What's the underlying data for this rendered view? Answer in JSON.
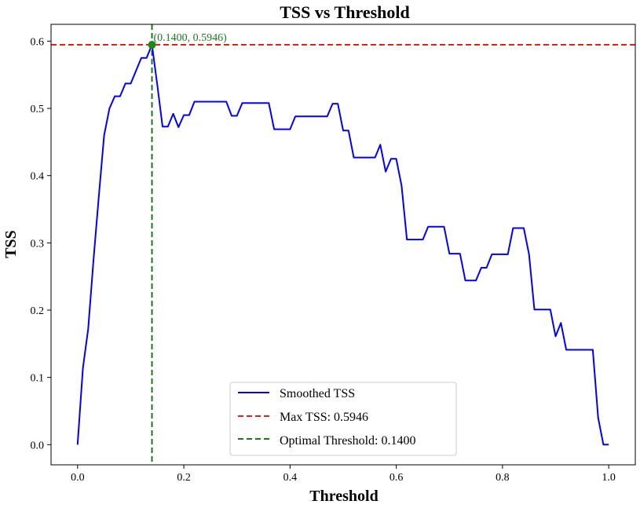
{
  "chart_data": {
    "type": "line",
    "title": "TSS vs Threshold",
    "xlabel": "Threshold",
    "ylabel": "TSS",
    "xlim": [
      -0.05,
      1.05
    ],
    "ylim": [
      -0.03,
      0.625
    ],
    "xticks": [
      0.0,
      0.2,
      0.4,
      0.6,
      0.8,
      1.0
    ],
    "xtick_labels": [
      "0.0",
      "0.2",
      "0.4",
      "0.6",
      "0.8",
      "1.0"
    ],
    "yticks": [
      0.0,
      0.1,
      0.2,
      0.3,
      0.4,
      0.5,
      0.6
    ],
    "ytick_labels": [
      "0.0",
      "0.1",
      "0.2",
      "0.3",
      "0.4",
      "0.5",
      "0.6"
    ],
    "grid": false,
    "legend_position": "bottom-center",
    "series": [
      {
        "name": "Smoothed TSS",
        "color": "#0000ff",
        "style": "solid",
        "x": [
          0.0,
          0.01,
          0.02,
          0.03,
          0.04,
          0.05,
          0.06,
          0.07,
          0.08,
          0.09,
          0.1,
          0.11,
          0.12,
          0.13,
          0.14,
          0.15,
          0.16,
          0.17,
          0.18,
          0.19,
          0.2,
          0.21,
          0.22,
          0.23,
          0.24,
          0.25,
          0.26,
          0.27,
          0.28,
          0.29,
          0.3,
          0.31,
          0.32,
          0.33,
          0.34,
          0.35,
          0.36,
          0.37,
          0.38,
          0.39,
          0.4,
          0.41,
          0.42,
          0.43,
          0.44,
          0.45,
          0.46,
          0.47,
          0.48,
          0.49,
          0.5,
          0.51,
          0.52,
          0.53,
          0.54,
          0.55,
          0.56,
          0.57,
          0.58,
          0.59,
          0.6,
          0.61,
          0.62,
          0.63,
          0.64,
          0.65,
          0.66,
          0.67,
          0.68,
          0.69,
          0.7,
          0.71,
          0.72,
          0.73,
          0.74,
          0.75,
          0.76,
          0.77,
          0.78,
          0.79,
          0.8,
          0.81,
          0.82,
          0.83,
          0.84,
          0.85,
          0.86,
          0.87,
          0.88,
          0.89,
          0.9,
          0.91,
          0.92,
          0.93,
          0.94,
          0.95,
          0.96,
          0.97,
          0.98,
          0.99,
          1.0
        ],
        "values": [
          0.0,
          0.114,
          0.172,
          0.275,
          0.37,
          0.46,
          0.5,
          0.518,
          0.518,
          0.537,
          0.537,
          0.556,
          0.575,
          0.575,
          0.5946,
          0.535,
          0.473,
          0.473,
          0.492,
          0.472,
          0.49,
          0.49,
          0.51,
          0.51,
          0.51,
          0.51,
          0.51,
          0.51,
          0.51,
          0.489,
          0.489,
          0.508,
          0.508,
          0.508,
          0.508,
          0.508,
          0.508,
          0.469,
          0.469,
          0.469,
          0.469,
          0.488,
          0.488,
          0.488,
          0.488,
          0.488,
          0.488,
          0.488,
          0.507,
          0.507,
          0.467,
          0.467,
          0.427,
          0.427,
          0.427,
          0.427,
          0.427,
          0.446,
          0.406,
          0.425,
          0.425,
          0.385,
          0.305,
          0.305,
          0.305,
          0.305,
          0.324,
          0.324,
          0.324,
          0.324,
          0.284,
          0.284,
          0.284,
          0.244,
          0.244,
          0.244,
          0.263,
          0.263,
          0.283,
          0.283,
          0.283,
          0.283,
          0.322,
          0.322,
          0.322,
          0.283,
          0.201,
          0.201,
          0.201,
          0.201,
          0.161,
          0.181,
          0.141,
          0.141,
          0.141,
          0.141,
          0.141,
          0.141,
          0.04,
          0.0,
          0.0
        ]
      }
    ],
    "reference_lines": [
      {
        "name": "Max TSS: 0.5946",
        "orientation": "horizontal",
        "value": 0.5946,
        "color": "#e32119",
        "style": "dashed"
      },
      {
        "name": "Optimal Threshold: 0.1400",
        "orientation": "vertical",
        "value": 0.14,
        "color": "#1a7a1a",
        "style": "dashed"
      }
    ],
    "marker": {
      "x": 0.14,
      "y": 0.5946,
      "color": "#1a8a1a"
    },
    "annotation": {
      "text": "(0.1400, 0.5946)",
      "x": 0.14,
      "y": 0.5946,
      "color": "#1a7a1a"
    },
    "legend": [
      "Smoothed TSS",
      "Max TSS: 0.5946",
      "Optimal Threshold: 0.1400"
    ]
  }
}
